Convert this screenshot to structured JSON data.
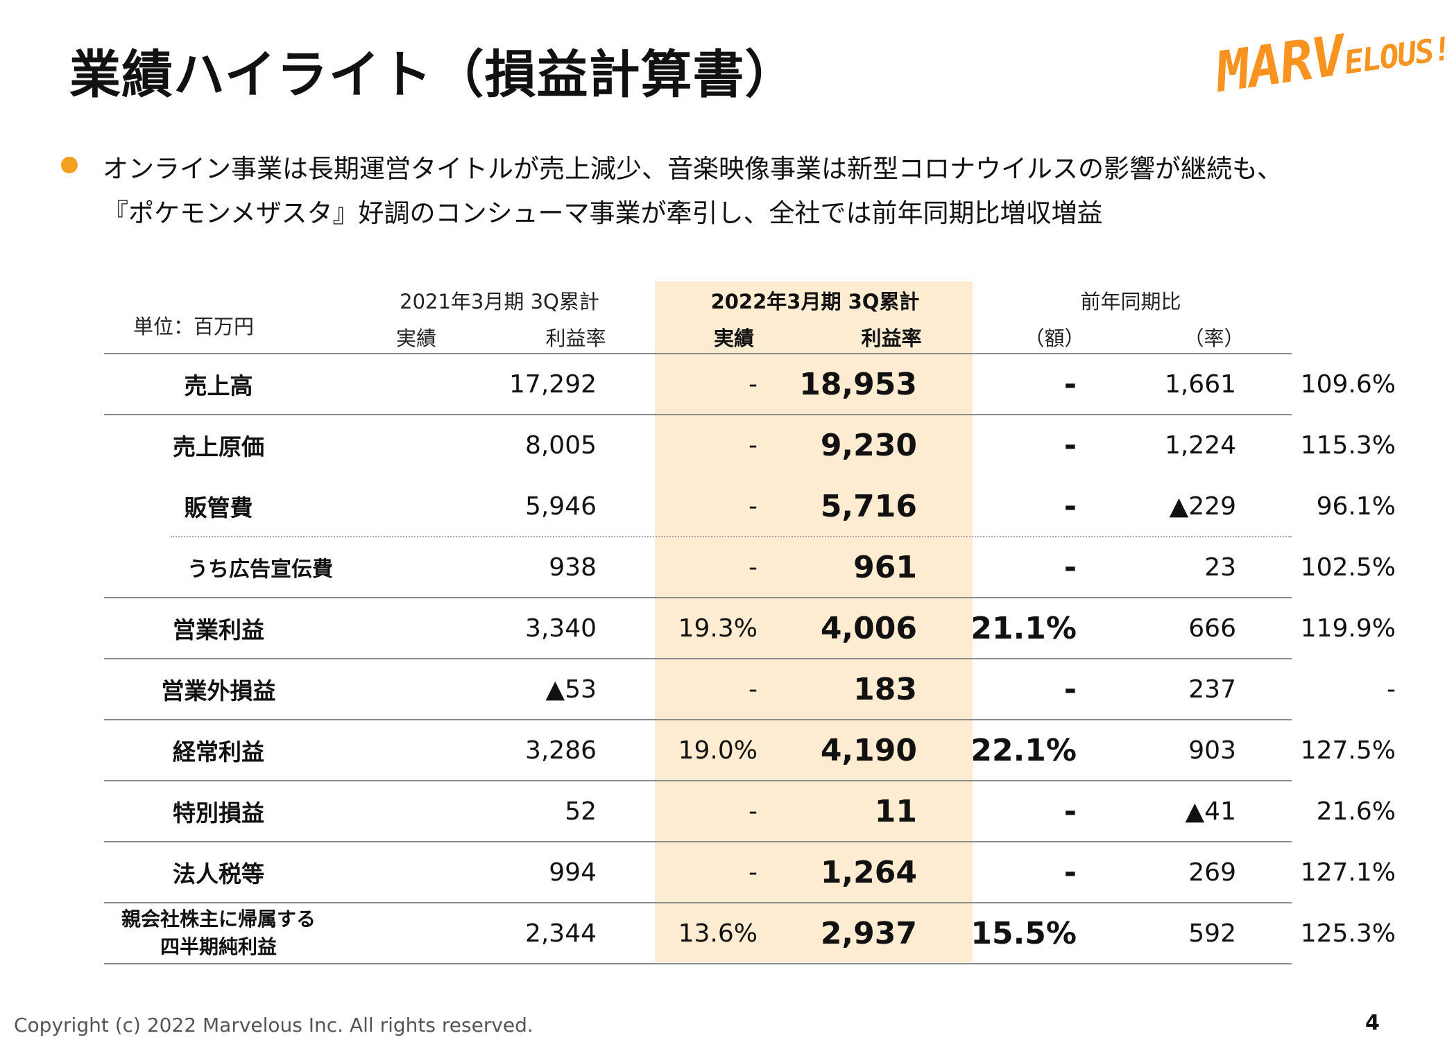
{
  "page": {
    "title": "業績ハイライト（損益計算書）",
    "logo_text_big": "MARV",
    "logo_text_small": "ELOUS!",
    "page_number": "4",
    "copyright": "Copyright (c) 2022 Marvelous Inc. All rights reserved."
  },
  "summary": {
    "line1": "オンライン事業は長期運営タイトルが売上減少、音楽映像事業は新型コロナウイルスの影響が継続も、",
    "line2": "『ポケモンメザスタ』好調のコンシューマ事業が牽引し、全社では前年同期比増収増益"
  },
  "table": {
    "unit_label": "単位：百万円",
    "header_prev_period": "2021年3月期 3Q累計",
    "header_curr_period": "2022年3月期 3Q累計",
    "header_yoy": "前年同期比",
    "sub_actual": "実績",
    "sub_margin": "利益率",
    "sub_amount": "（額）",
    "sub_rate": "（率）",
    "highlight_color": "#fdebd2",
    "rows": [
      {
        "label": "売上高",
        "prev_actual": "17,292",
        "prev_margin": "-",
        "curr_actual": "18,953",
        "curr_margin": "-",
        "yoy_amount": "1,661",
        "yoy_rate": "109.6%"
      },
      {
        "label": "売上原価",
        "prev_actual": "8,005",
        "prev_margin": "-",
        "curr_actual": "9,230",
        "curr_margin": "-",
        "yoy_amount": "1,224",
        "yoy_rate": "115.3%"
      },
      {
        "label": "販管費",
        "prev_actual": "5,946",
        "prev_margin": "-",
        "curr_actual": "5,716",
        "curr_margin": "-",
        "yoy_amount": "▲229",
        "yoy_rate": "96.1%"
      },
      {
        "label": "うち広告宣伝費",
        "prev_actual": "938",
        "prev_margin": "-",
        "curr_actual": "961",
        "curr_margin": "-",
        "yoy_amount": "23",
        "yoy_rate": "102.5%"
      },
      {
        "label": "営業利益",
        "prev_actual": "3,340",
        "prev_margin": "19.3%",
        "curr_actual": "4,006",
        "curr_margin": "21.1%",
        "yoy_amount": "666",
        "yoy_rate": "119.9%"
      },
      {
        "label": "営業外損益",
        "prev_actual": "▲53",
        "prev_margin": "-",
        "curr_actual": "183",
        "curr_margin": "-",
        "yoy_amount": "237",
        "yoy_rate": "-"
      },
      {
        "label": "経常利益",
        "prev_actual": "3,286",
        "prev_margin": "19.0%",
        "curr_actual": "4,190",
        "curr_margin": "22.1%",
        "yoy_amount": "903",
        "yoy_rate": "127.5%"
      },
      {
        "label": "特別損益",
        "prev_actual": "52",
        "prev_margin": "-",
        "curr_actual": "11",
        "curr_margin": "-",
        "yoy_amount": "▲41",
        "yoy_rate": "21.6%"
      },
      {
        "label": "法人税等",
        "prev_actual": "994",
        "prev_margin": "-",
        "curr_actual": "1,264",
        "curr_margin": "-",
        "yoy_amount": "269",
        "yoy_rate": "127.1%"
      },
      {
        "label_line1": "親会社株主に帰属する",
        "label_line2": "四半期純利益",
        "prev_actual": "2,344",
        "prev_margin": "13.6%",
        "curr_actual": "2,937",
        "curr_margin": "15.5%",
        "yoy_amount": "592",
        "yoy_rate": "125.3%"
      }
    ]
  }
}
